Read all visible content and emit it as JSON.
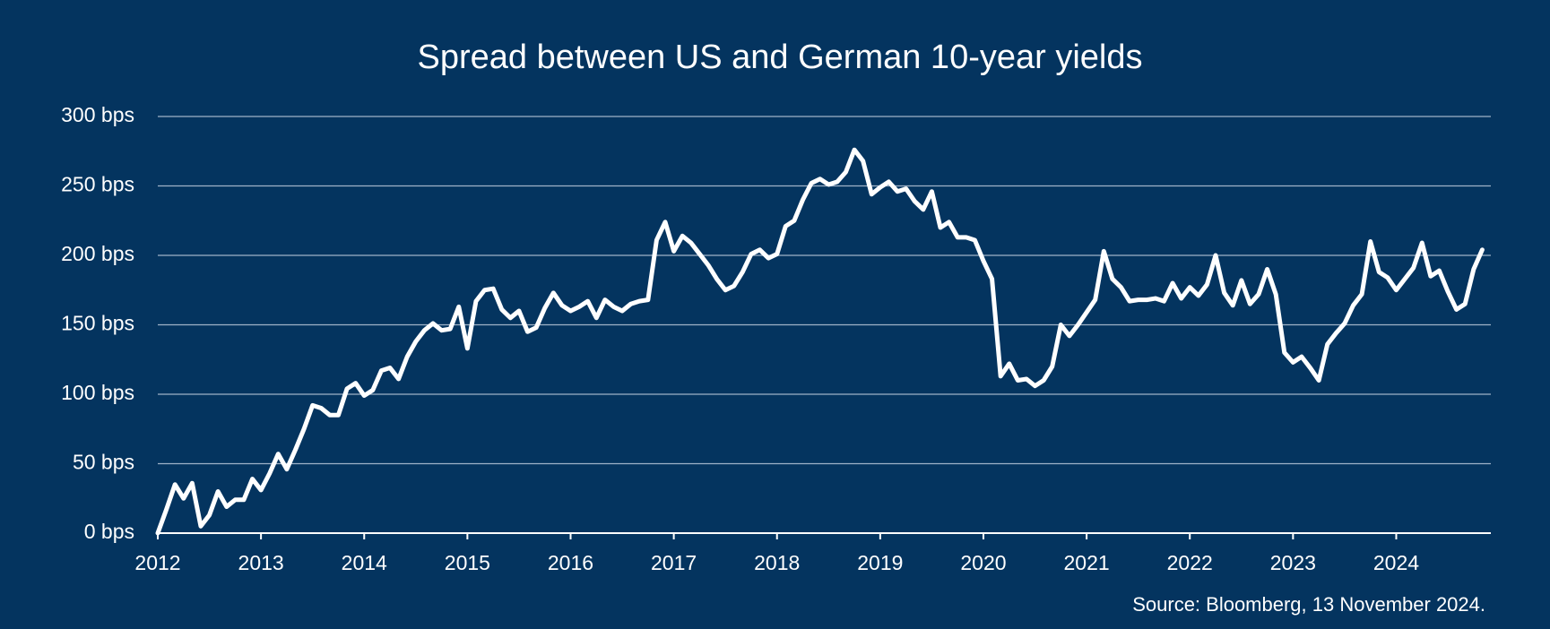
{
  "chart_data": {
    "type": "line",
    "title": "Spread between US and German 10-year yields",
    "source": "Source: Bloomberg, 13 November 2024.",
    "categories": [
      "2012",
      null,
      null,
      null,
      null,
      null,
      null,
      null,
      null,
      null,
      null,
      null,
      "2013",
      null,
      null,
      null,
      null,
      null,
      null,
      null,
      null,
      null,
      null,
      null,
      "2014",
      null,
      null,
      null,
      null,
      null,
      null,
      null,
      null,
      null,
      null,
      null,
      "2015",
      null,
      null,
      null,
      null,
      null,
      null,
      null,
      null,
      null,
      null,
      null,
      "2016",
      null,
      null,
      null,
      null,
      null,
      null,
      null,
      null,
      null,
      null,
      null,
      "2017",
      null,
      null,
      null,
      null,
      null,
      null,
      null,
      null,
      null,
      null,
      null,
      "2018",
      null,
      null,
      null,
      null,
      null,
      null,
      null,
      null,
      null,
      null,
      null,
      "2019",
      null,
      null,
      null,
      null,
      null,
      null,
      null,
      null,
      null,
      null,
      null,
      "2020",
      null,
      null,
      null,
      null,
      null,
      null,
      null,
      null,
      null,
      null,
      null,
      "2021",
      null,
      null,
      null,
      null,
      null,
      null,
      null,
      null,
      null,
      null,
      null,
      "2022",
      null,
      null,
      null,
      null,
      null,
      null,
      null,
      null,
      null,
      null,
      null,
      "2023",
      null,
      null,
      null,
      null,
      null,
      null,
      null,
      null,
      null,
      null,
      null,
      "2024",
      null,
      null,
      null,
      null,
      null,
      null,
      null,
      null,
      null,
      null
    ],
    "series": [
      {
        "name": "Spread",
        "color": "#ffffff",
        "values": [
          0,
          17,
          35,
          25,
          36,
          5,
          13,
          30,
          19,
          24,
          24,
          39,
          31,
          43,
          57,
          46,
          60,
          75,
          92,
          90,
          85,
          85,
          104,
          108,
          99,
          103,
          117,
          119,
          111,
          127,
          138,
          146,
          151,
          146,
          147,
          163,
          133,
          167,
          175,
          176,
          161,
          155,
          160,
          145,
          148,
          162,
          173,
          164,
          160,
          163,
          167,
          155,
          168,
          163,
          160,
          165,
          167,
          168,
          211,
          224,
          203,
          214,
          209,
          201,
          193,
          183,
          175,
          178,
          188,
          201,
          204,
          198,
          201,
          221,
          225,
          240,
          252,
          255,
          251,
          253,
          260,
          276,
          268,
          244,
          249,
          253,
          246,
          248,
          239,
          233,
          246,
          220,
          224,
          213,
          213,
          211,
          196,
          183,
          113,
          122,
          110,
          111,
          106,
          110,
          120,
          150,
          142,
          150,
          159,
          168,
          203,
          183,
          177,
          167,
          168,
          168,
          169,
          167,
          180,
          169,
          177,
          171,
          179,
          200,
          173,
          164,
          182,
          165,
          172,
          190,
          172,
          130,
          123,
          127,
          119,
          110,
          136,
          144,
          151,
          164,
          172,
          210,
          188,
          184,
          175,
          183,
          191,
          209,
          185,
          189,
          174,
          161,
          165,
          190,
          204
        ]
      }
    ],
    "ylim": [
      0,
      300
    ],
    "yticks": [
      {
        "value": 0,
        "label": "0 bps"
      },
      {
        "value": 50,
        "label": "50 bps"
      },
      {
        "value": 100,
        "label": "100 bps"
      },
      {
        "value": 150,
        "label": "150 bps"
      },
      {
        "value": 200,
        "label": "200 bps"
      },
      {
        "value": 250,
        "label": "250 bps"
      },
      {
        "value": 300,
        "label": "300 bps"
      }
    ],
    "grid": true
  }
}
